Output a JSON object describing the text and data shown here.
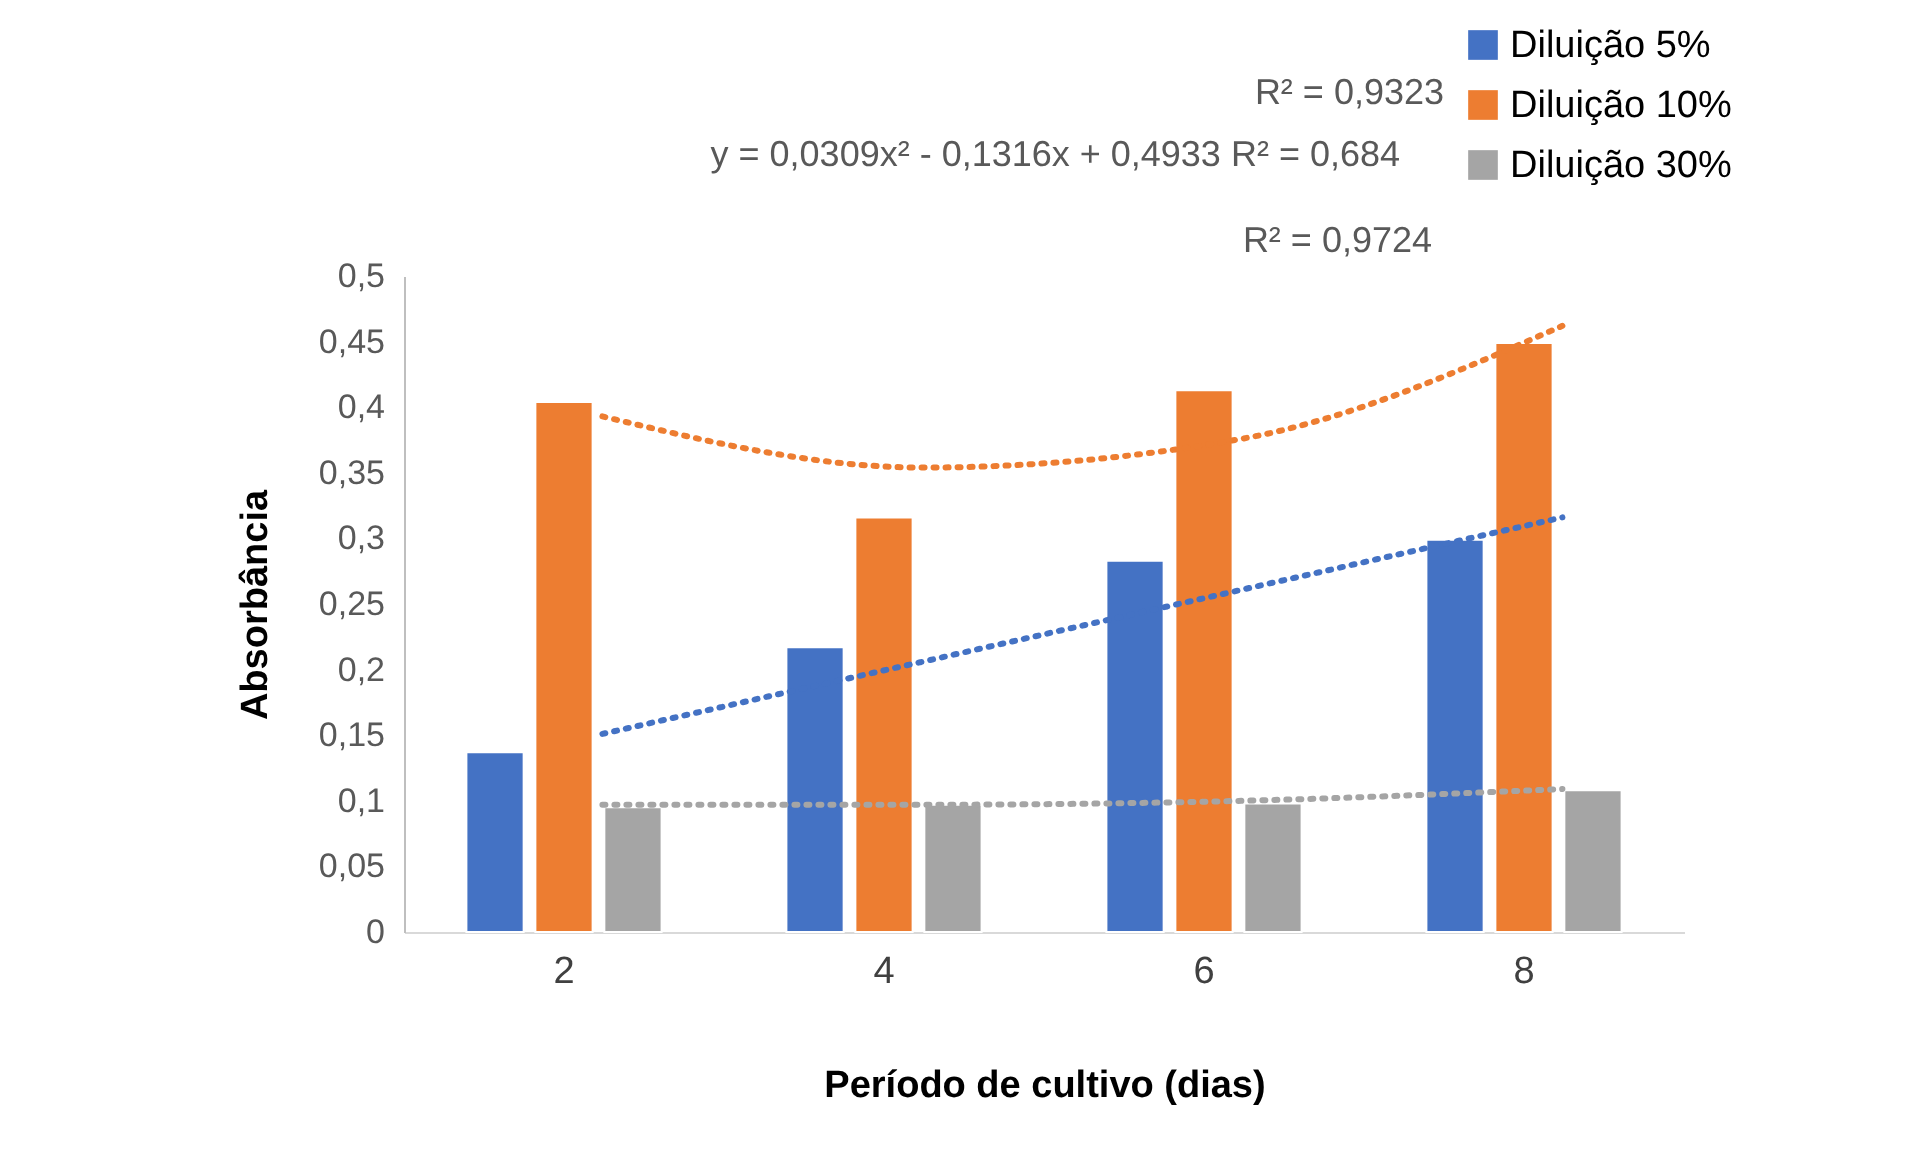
{
  "chart_data": {
    "type": "bar",
    "xlabel": "Período de cultivo (dias)",
    "ylabel": "Absorbância",
    "categories": [
      "2",
      "4",
      "6",
      "8"
    ],
    "series": [
      {
        "name": "Diluição 5%",
        "color": "#4472c4",
        "values": [
          0.137,
          0.217,
          0.283,
          0.299
        ]
      },
      {
        "name": "Diluição 10%",
        "color": "#ed7d31",
        "values": [
          0.404,
          0.316,
          0.413,
          0.449
        ]
      },
      {
        "name": "Diluição 30%",
        "color": "#a5a5a5",
        "values": [
          0.095,
          0.097,
          0.098,
          0.108
        ]
      },
      {
        "type": "line",
        "color": "#4472c4",
        "x": [
          "2",
          "4",
          "6",
          "8"
        ],
        "values": [
          0.151,
          0.206,
          0.261,
          0.316
        ]
      },
      {
        "type": "line",
        "color": "#ed7d31",
        "x": [
          "2",
          "4",
          "6",
          "8"
        ],
        "values": [
          0.393,
          0.354,
          0.376,
          0.462
        ]
      },
      {
        "type": "line",
        "color": "#a5a5a5",
        "x": [
          "2",
          "4",
          "6",
          "8"
        ],
        "values": [
          0.097,
          0.097,
          0.1,
          0.109
        ]
      }
    ],
    "line_style": "dotted",
    "marker": "none",
    "ylim": [
      0,
      0.5
    ],
    "yticks": [
      0,
      {
        "value": 0.05,
        "label": "0,05"
      },
      {
        "value": 0.1,
        "label": "0,1"
      },
      {
        "value": 0.15,
        "label": "0,15"
      },
      {
        "value": 0.2,
        "label": "0,2"
      },
      {
        "value": 0.25,
        "label": "0,25"
      },
      {
        "value": 0.3,
        "label": "0,3"
      },
      {
        "value": 0.35,
        "label": "0,35"
      },
      {
        "value": 0.4,
        "label": "0,4"
      },
      {
        "value": 0.45,
        "label": "0,45"
      },
      {
        "value": 0.5,
        "label": "0,5"
      }
    ],
    "annotations": [
      "R² = 0,9323",
      "y = 0,0309x² - 0,1316x + 0,4933 R² = 0,684",
      "R² = 0,9724"
    ],
    "grid": false,
    "legend": "top right"
  }
}
